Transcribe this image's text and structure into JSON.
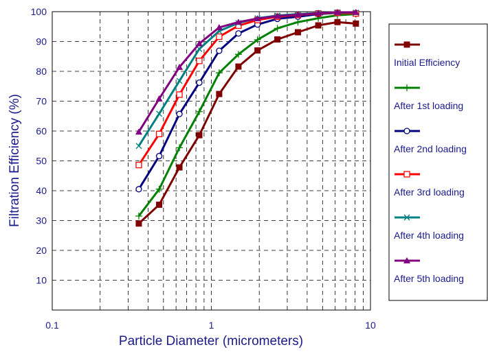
{
  "chart_data": {
    "type": "line",
    "xlabel": "Particle Diameter (micrometers)",
    "ylabel": "Filtration Efficiency (%)",
    "xscale": "log",
    "xlim": [
      0.1,
      10
    ],
    "ylim": [
      0,
      100
    ],
    "x_tick_labels": [
      "0.1",
      "1",
      "10"
    ],
    "y_tick_labels": [
      "10",
      "20",
      "30",
      "40",
      "50",
      "60",
      "70",
      "80",
      "90",
      "100"
    ],
    "grid": "dashed",
    "legend_position": "right",
    "x": [
      0.35,
      0.47,
      0.63,
      0.84,
      1.12,
      1.48,
      1.95,
      2.6,
      3.5,
      4.7,
      6.2,
      8.1
    ],
    "series": [
      {
        "name": "Initial Efficiency",
        "color": "#800000",
        "marker": "filled-square",
        "values": [
          29,
          35.3,
          47.8,
          58.6,
          72.4,
          81.6,
          87,
          90.7,
          93.1,
          95.4,
          96.5,
          96
        ]
      },
      {
        "name": "After 1st loading",
        "color": "#008000",
        "marker": "plus",
        "values": [
          31.5,
          40.5,
          54.4,
          66.5,
          79.5,
          85.7,
          90.6,
          94.4,
          96.5,
          97.8,
          98.8,
          99.2
        ]
      },
      {
        "name": "After 2nd loading",
        "color": "#000080",
        "marker": "open-circle",
        "values": [
          40.5,
          51.6,
          65.7,
          76.2,
          86.9,
          92.7,
          95.7,
          97.6,
          98.3,
          99.2,
          99.6,
          99.5
        ]
      },
      {
        "name": "After 3rd loading",
        "color": "#ff0000",
        "marker": "open-square",
        "values": [
          48.6,
          59,
          72.2,
          83.5,
          91.6,
          95.3,
          97.2,
          98.3,
          98.9,
          99.4,
          99.6,
          99.4
        ]
      },
      {
        "name": "After 4th loading",
        "color": "#008080",
        "marker": "x",
        "values": [
          55,
          65.8,
          76.8,
          87.5,
          93.5,
          96.2,
          97.8,
          98.7,
          99.2,
          99.5,
          99.7,
          99.7
        ]
      },
      {
        "name": "After 5th loading",
        "color": "#800080",
        "marker": "filled-triangle",
        "values": [
          59.7,
          70.8,
          81.4,
          89.3,
          94.7,
          96.5,
          97.7,
          98.5,
          99,
          99.5,
          99.8,
          99.8
        ]
      }
    ]
  }
}
